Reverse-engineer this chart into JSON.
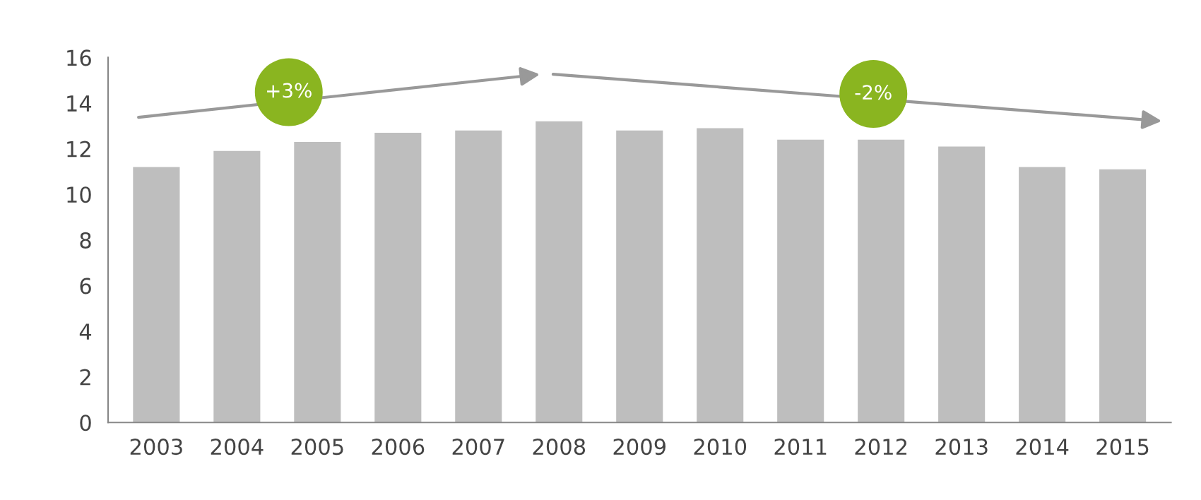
{
  "chart_data": {
    "type": "bar",
    "categories": [
      "2003",
      "2004",
      "2005",
      "2006",
      "2007",
      "2008",
      "2009",
      "2010",
      "2011",
      "2012",
      "2013",
      "2014",
      "2015"
    ],
    "series": [
      {
        "color": "#bebebe",
        "values": [
          11.2,
          11.9,
          12.3,
          12.7,
          12.8,
          13.2,
          12.8,
          12.9,
          12.4,
          12.4,
          12.1,
          11.2,
          11.1
        ]
      }
    ],
    "annotations": [
      "+3%",
      "-2%"
    ],
    "ylim": [
      0,
      16
    ],
    "yticks": [
      0,
      2,
      4,
      6,
      8,
      10,
      12,
      14,
      16
    ],
    "grid": false,
    "legend": false
  }
}
